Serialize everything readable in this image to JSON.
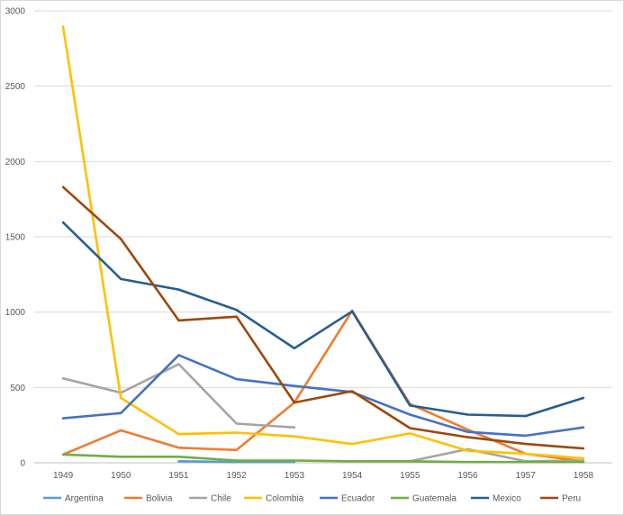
{
  "chart_data": {
    "type": "line",
    "title": "",
    "xlabel": "",
    "ylabel": "",
    "ylim": [
      0,
      3000
    ],
    "yticks": [
      "0",
      "500",
      "1000",
      "1500",
      "2000",
      "2500",
      "3000"
    ],
    "ytick_values": [
      0,
      500,
      1000,
      1500,
      2000,
      2500,
      3000
    ],
    "categories": [
      "1949",
      "1950",
      "1951",
      "1952",
      "1953",
      "1954",
      "1955",
      "1956",
      "1957",
      "1958"
    ],
    "grid": true,
    "legend_position": "bottom",
    "series": [
      {
        "name": "Argentina",
        "color": "#5b9bd5",
        "values": [
          null,
          null,
          10,
          5,
          5,
          null,
          null,
          null,
          null,
          null
        ]
      },
      {
        "name": "Bolivia",
        "color": "#ed7d31",
        "values": [
          55,
          215,
          100,
          85,
          400,
          1010,
          390,
          220,
          60,
          10
        ]
      },
      {
        "name": "Chile",
        "color": "#a5a5a5",
        "values": [
          560,
          465,
          655,
          260,
          235,
          null,
          10,
          90,
          10,
          15
        ]
      },
      {
        "name": "Colombia",
        "color": "#ffc000",
        "values": [
          2895,
          430,
          190,
          200,
          175,
          125,
          195,
          80,
          60,
          30
        ]
      },
      {
        "name": "Ecuador",
        "color": "#4472c4",
        "values": [
          295,
          330,
          715,
          555,
          510,
          470,
          320,
          205,
          180,
          235
        ]
      },
      {
        "name": "Guatemala",
        "color": "#70ad47",
        "values": [
          55,
          40,
          40,
          15,
          15,
          10,
          10,
          5,
          5,
          5
        ]
      },
      {
        "name": "Mexico",
        "color": "#255e91",
        "values": [
          1595,
          1220,
          1150,
          1015,
          760,
          1005,
          380,
          320,
          310,
          430
        ]
      },
      {
        "name": "Peru",
        "color": "#9e480e",
        "values": [
          1830,
          1485,
          945,
          970,
          400,
          475,
          230,
          170,
          125,
          95
        ]
      }
    ]
  }
}
